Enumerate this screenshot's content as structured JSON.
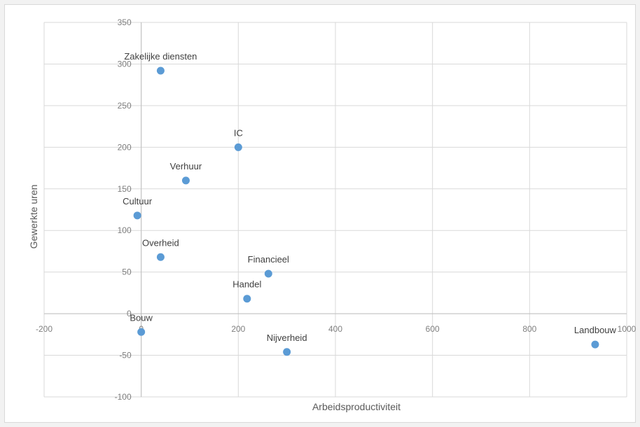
{
  "chart_data": {
    "type": "scatter",
    "title": "",
    "xlabel": "Arbeidsproductiviteit",
    "ylabel": "Gewerkte uren",
    "xlim": [
      -200,
      1000
    ],
    "ylim": [
      -100,
      350
    ],
    "xticks": [
      -200,
      0,
      200,
      400,
      600,
      800,
      1000
    ],
    "yticks": [
      -100,
      -50,
      0,
      50,
      100,
      150,
      200,
      250,
      300,
      350
    ],
    "xtick_labels": [
      "-200",
      "0",
      "200",
      "400",
      "600",
      "800",
      "1000"
    ],
    "ytick_labels": [
      "-100",
      "-50",
      "0",
      "50",
      "100",
      "150",
      "200",
      "250",
      "300",
      "350"
    ],
    "grid": true,
    "legend": false,
    "marker_color": "#5b9bd5",
    "points": [
      {
        "label": "Zakelijke diensten",
        "x": 40,
        "y": 292
      },
      {
        "label": "IC",
        "x": 200,
        "y": 200
      },
      {
        "label": "Verhuur",
        "x": 92,
        "y": 160
      },
      {
        "label": "Cultuur",
        "x": -8,
        "y": 118
      },
      {
        "label": "Overheid",
        "x": 40,
        "y": 68
      },
      {
        "label": "Financieel",
        "x": 262,
        "y": 48
      },
      {
        "label": "Handel",
        "x": 218,
        "y": 18
      },
      {
        "label": "Bouw",
        "x": 0,
        "y": -22
      },
      {
        "label": "Nijverheid",
        "x": 300,
        "y": -46
      },
      {
        "label": "Landbouw",
        "x": 935,
        "y": -37
      }
    ]
  }
}
